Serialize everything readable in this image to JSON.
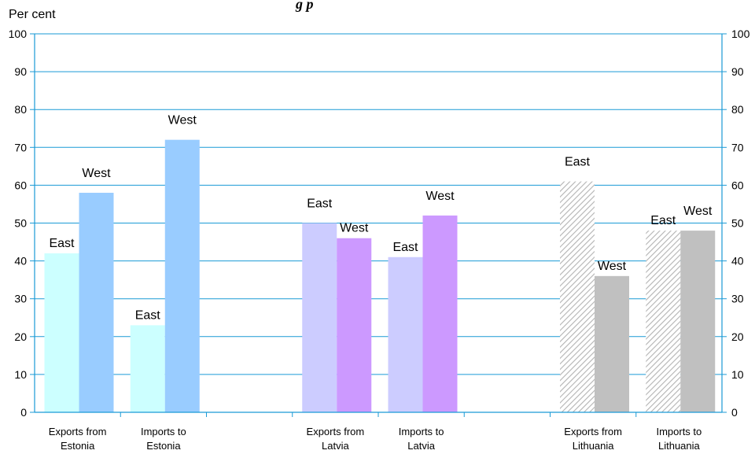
{
  "chart_data": {
    "type": "bar",
    "title_fragment": "g p",
    "ylabel": "Per cent",
    "ylim": [
      0,
      100
    ],
    "yticks": [
      0,
      10,
      20,
      30,
      40,
      50,
      60,
      70,
      80,
      90,
      100
    ],
    "grid": true,
    "groups": [
      {
        "label": [
          "Exports from",
          "Estonia"
        ],
        "east": 42,
        "west": 58,
        "style": "estonia"
      },
      {
        "label": [
          "Imports to",
          "Estonia"
        ],
        "east": 23,
        "west": 72,
        "style": "estonia"
      },
      {
        "label": [
          "Exports from",
          "Latvia"
        ],
        "east": 50,
        "west": 46,
        "style": "latvia"
      },
      {
        "label": [
          "Imports to",
          "Latvia"
        ],
        "east": 41,
        "west": 52,
        "style": "latvia"
      },
      {
        "label": [
          "Exports from",
          "Lithuania"
        ],
        "east": 61,
        "west": 36,
        "style": "lithuania"
      },
      {
        "label": [
          "Imports to",
          "Lithuania"
        ],
        "east": 48,
        "west": 48,
        "style": "lithuania"
      }
    ],
    "bar_labels": {
      "east": "East",
      "west": "West"
    },
    "colors": {
      "axis": "#1a9ad6",
      "estonia_east": "#ccffff",
      "estonia_west": "#99ccff",
      "latvia_east": "#ccccff",
      "latvia_west": "#cc99ff",
      "lithuania_east": "#cccccc",
      "lithuania_west": "#c0c0c0"
    }
  }
}
